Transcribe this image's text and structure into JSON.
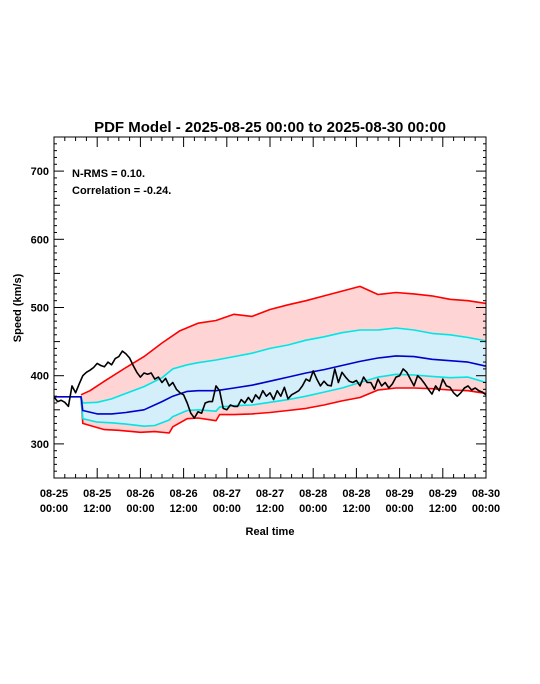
{
  "chart_data": {
    "type": "line",
    "title": "PDF Model - 2025-08-25 00:00 to 2025-08-30 00:00",
    "xlabel": "Real time",
    "ylabel": "Speed (km/s)",
    "xlim": [
      0,
      120
    ],
    "ylim": [
      250,
      750
    ],
    "yticks": [
      300,
      400,
      500,
      600,
      700
    ],
    "xtick_hours": [
      0,
      12,
      24,
      36,
      48,
      60,
      72,
      84,
      96,
      108,
      120
    ],
    "xtick_labels": [
      [
        "08-25",
        "00:00"
      ],
      [
        "08-25",
        "12:00"
      ],
      [
        "08-26",
        "00:00"
      ],
      [
        "08-26",
        "12:00"
      ],
      [
        "08-27",
        "00:00"
      ],
      [
        "08-27",
        "12:00"
      ],
      [
        "08-28",
        "00:00"
      ],
      [
        "08-28",
        "12:00"
      ],
      [
        "08-29",
        "00:00"
      ],
      [
        "08-29",
        "12:00"
      ],
      [
        "08-30",
        "00:00"
      ]
    ],
    "annotations": [
      "N-RMS = 0.10.",
      "Correlation = -0.24."
    ],
    "grid": false,
    "bands": [
      {
        "color": "#ffd4d4",
        "lower": "red_lower",
        "upper": "red_upper"
      },
      {
        "color": "#d4eefa",
        "lower": "cyan_lower",
        "upper": "cyan_upper"
      }
    ],
    "series": [
      {
        "key": "red_upper",
        "color": "#ff0000",
        "x": [
          7.5,
          10,
          14,
          20,
          25,
          30,
          35,
          40,
          45,
          50,
          55,
          60,
          65,
          70,
          75,
          80,
          85,
          90,
          95,
          100,
          105,
          110,
          115,
          120
        ],
        "y": [
          372,
          378,
          392,
          412,
          428,
          448,
          466,
          477,
          481,
          490,
          487,
          497,
          504,
          510,
          517,
          524,
          531,
          519,
          522,
          520,
          517,
          512,
          510,
          506
        ]
      },
      {
        "key": "red_lower",
        "color": "#ff0000",
        "x": [
          7.5,
          8,
          10,
          14,
          18,
          24,
          28,
          32,
          33,
          37,
          40,
          45,
          46,
          50,
          55,
          60,
          65,
          70,
          75,
          80,
          85,
          90,
          95,
          100,
          105,
          110,
          115,
          120
        ],
        "y": [
          370,
          330,
          327,
          321,
          320,
          317,
          318,
          316,
          325,
          337,
          338,
          334,
          343,
          343,
          344,
          346,
          349,
          352,
          357,
          363,
          368,
          379,
          382,
          382,
          381,
          379,
          378,
          374
        ]
      },
      {
        "key": "cyan_upper",
        "color": "#00e5e5",
        "x": [
          7.5,
          8,
          12,
          16,
          20,
          25,
          30,
          33,
          37,
          40,
          45,
          50,
          55,
          60,
          65,
          70,
          75,
          80,
          85,
          90,
          95,
          100,
          105,
          110,
          115,
          120
        ],
        "y": [
          370,
          360,
          361,
          366,
          374,
          384,
          397,
          410,
          416,
          419,
          423,
          428,
          433,
          440,
          445,
          452,
          457,
          463,
          467,
          467,
          470,
          467,
          462,
          460,
          456,
          451
        ]
      },
      {
        "key": "cyan_lower",
        "color": "#00e5e5",
        "x": [
          7.5,
          8,
          12,
          16,
          20,
          25,
          28,
          32,
          33,
          37,
          40,
          45,
          46,
          50,
          55,
          60,
          65,
          70,
          75,
          80,
          85,
          90,
          95,
          100,
          105,
          110,
          115,
          120
        ],
        "y": [
          370,
          337,
          332,
          331,
          329,
          326,
          327,
          335,
          340,
          349,
          350,
          348,
          354,
          356,
          357,
          361,
          365,
          370,
          376,
          382,
          390,
          398,
          402,
          401,
          399,
          397,
          398,
          390
        ]
      },
      {
        "key": "blue",
        "color": "#0000cc",
        "x": [
          0,
          7.5,
          8,
          12,
          16,
          20,
          25,
          30,
          33,
          37,
          40,
          45,
          50,
          55,
          60,
          65,
          70,
          75,
          80,
          85,
          90,
          95,
          100,
          105,
          110,
          115,
          120
        ],
        "y": [
          369,
          369,
          349,
          344,
          344,
          346,
          350,
          362,
          370,
          377,
          378,
          378,
          382,
          386,
          392,
          398,
          404,
          409,
          415,
          421,
          426,
          429,
          428,
          424,
          422,
          420,
          414
        ]
      },
      {
        "key": "observed",
        "color": "#000000",
        "x": [
          0,
          1,
          2,
          3,
          4,
          5,
          6,
          7,
          8,
          9,
          10,
          11,
          12,
          13,
          14,
          15,
          16,
          17,
          18,
          19,
          20,
          21,
          22,
          23,
          24,
          25,
          26,
          27,
          28,
          29,
          30,
          31,
          32,
          33,
          34,
          35,
          36,
          37,
          38,
          39,
          40,
          41,
          42,
          43,
          44,
          45,
          46,
          47,
          48,
          49,
          50,
          51,
          52,
          53,
          54,
          55,
          56,
          57,
          58,
          59,
          60,
          61,
          62,
          63,
          64,
          65,
          66,
          67,
          68,
          69,
          70,
          71,
          72,
          73,
          74,
          75,
          76,
          77,
          78,
          79,
          80,
          81,
          82,
          83,
          84,
          85,
          86,
          87,
          88,
          89,
          90,
          91,
          92,
          93,
          94,
          95,
          96,
          97,
          98,
          99,
          100,
          101,
          102,
          103,
          104,
          105,
          106,
          107,
          108,
          109,
          110,
          111,
          112,
          113,
          114,
          115,
          116,
          117,
          118,
          119,
          120
        ],
        "y": [
          369,
          362,
          364,
          361,
          355,
          385,
          375,
          388,
          400,
          405,
          408,
          412,
          418,
          415,
          413,
          420,
          416,
          425,
          428,
          436,
          432,
          426,
          415,
          405,
          398,
          404,
          402,
          404,
          395,
          398,
          390,
          396,
          385,
          390,
          380,
          375,
          372,
          360,
          345,
          338,
          347,
          345,
          360,
          362,
          362,
          385,
          378,
          352,
          350,
          357,
          355,
          355,
          365,
          360,
          368,
          361,
          372,
          366,
          378,
          370,
          375,
          365,
          378,
          370,
          383,
          366,
          372,
          375,
          378,
          385,
          395,
          392,
          407,
          395,
          385,
          392,
          386,
          385,
          410,
          390,
          405,
          398,
          392,
          390,
          393,
          385,
          398,
          390,
          390,
          380,
          395,
          385,
          390,
          382,
          388,
          398,
          400,
          410,
          405,
          395,
          385,
          400,
          395,
          388,
          380,
          373,
          385,
          378,
          395,
          385,
          383,
          375,
          370,
          375,
          382,
          385,
          379,
          382,
          378,
          376,
          372
        ]
      }
    ]
  }
}
